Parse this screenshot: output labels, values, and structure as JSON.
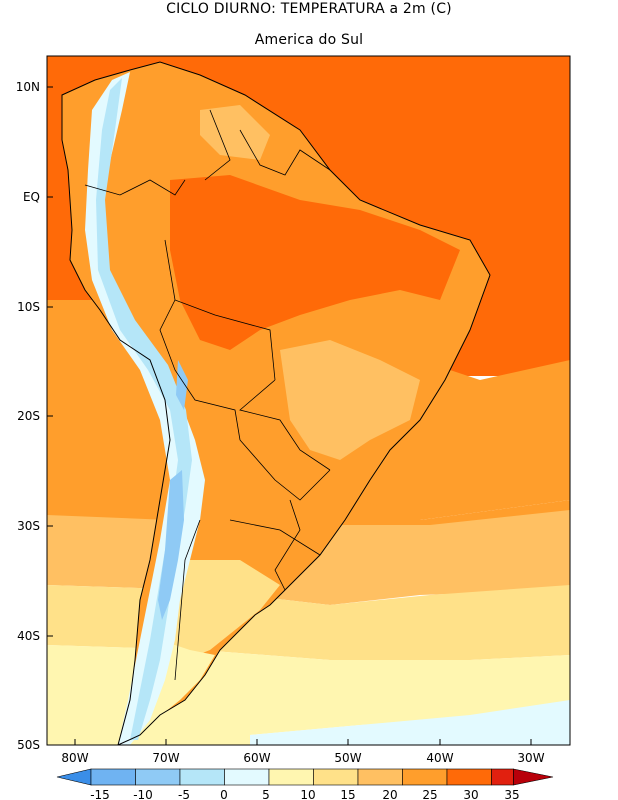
{
  "title": "CICLO DIURNO: TEMPERATURA a 2m (C)",
  "subtitle": "America do Sul",
  "lat_labels": [
    "10N",
    "EQ",
    "10S",
    "20S",
    "30S",
    "40S",
    "50S"
  ],
  "lon_labels": [
    "80W",
    "70W",
    "60W",
    "50W",
    "40W",
    "30W"
  ],
  "colorbar": {
    "labels": [
      "-15",
      "-10",
      "-5",
      "0",
      "5",
      "10",
      "15",
      "20",
      "25",
      "30",
      "35"
    ],
    "colors": [
      "#3a8ee8",
      "#6fb3f2",
      "#8fcaf5",
      "#b5e6f8",
      "#e3faff",
      "#fff6b0",
      "#ffe189",
      "#ffc062",
      "#ff9e2c",
      "#ff6a08",
      "#e1200f",
      "#b8000a"
    ]
  },
  "field_colors": {
    "warm_30": "#ff6a08",
    "warm_25": "#ff9e2c",
    "mid_20": "#ffc062",
    "mild_15": "#ffe189",
    "cool_10": "#fff6b0",
    "cold_5": "#e3faff",
    "cold_0": "#b5e6f8",
    "cold_m5": "#8fcaf5"
  }
}
